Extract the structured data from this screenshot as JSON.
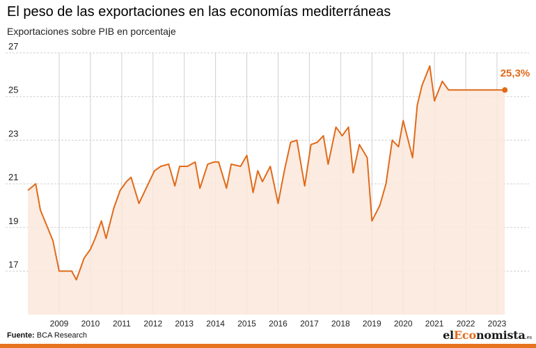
{
  "title": "El peso de las exportaciones en las economías mediterráneas",
  "subtitle": "Exportaciones sobre PIB en porcentaje",
  "source_label": "Fuente:",
  "source_value": "BCA Research",
  "brand": {
    "prefix": "el",
    "accent": "Eco",
    "suffix": "nomista",
    "tld": ".es"
  },
  "colors": {
    "line": "#e06a1a",
    "fill": "#fbe8da",
    "grid": "#d0d0d0",
    "bar": "#e8731f"
  },
  "chart_data": {
    "type": "area",
    "title": "El peso de las exportaciones en las economías mediterráneas",
    "subtitle": "Exportaciones sobre PIB en porcentaje",
    "xlabel": "",
    "ylabel": "",
    "ylim": [
      15,
      27
    ],
    "xlim": [
      2008,
      2023.75
    ],
    "yticks": [
      17,
      19,
      21,
      23,
      25,
      27
    ],
    "xticks": [
      2009,
      2010,
      2011,
      2012,
      2013,
      2014,
      2015,
      2016,
      2017,
      2018,
      2019,
      2020,
      2021,
      2022,
      2023
    ],
    "grid": true,
    "last_label": "25,3%",
    "series": [
      {
        "name": "Exportaciones sobre PIB",
        "x": [
          2008.0,
          2008.25,
          2008.4,
          2008.6,
          2008.8,
          2009.0,
          2009.2,
          2009.4,
          2009.55,
          2009.8,
          2010.0,
          2010.15,
          2010.35,
          2010.5,
          2010.75,
          2010.95,
          2011.15,
          2011.3,
          2011.55,
          2011.85,
          2012.05,
          2012.25,
          2012.5,
          2012.7,
          2012.85,
          2013.1,
          2013.35,
          2013.5,
          2013.75,
          2013.95,
          2014.1,
          2014.35,
          2014.5,
          2014.8,
          2015.0,
          2015.2,
          2015.35,
          2015.5,
          2015.75,
          2016.0,
          2016.2,
          2016.4,
          2016.6,
          2016.85,
          2017.05,
          2017.25,
          2017.45,
          2017.6,
          2017.85,
          2018.05,
          2018.25,
          2018.4,
          2018.6,
          2018.85,
          2019.0,
          2019.25,
          2019.45,
          2019.65,
          2019.85,
          2020.0,
          2020.3,
          2020.45,
          2020.6,
          2020.85,
          2021.0,
          2021.25,
          2021.45,
          2021.55,
          2021.75,
          2021.95,
          2022.05,
          2022.25,
          2022.45,
          2022.6,
          2022.75,
          2022.9,
          2023.05,
          2023.25
        ],
        "values": [
          20.7,
          21.0,
          19.8,
          19.1,
          18.4,
          17.0,
          17.0,
          17.0,
          16.6,
          17.6,
          18.0,
          18.5,
          19.3,
          18.5,
          19.9,
          20.7,
          21.1,
          21.3,
          20.1,
          21.0,
          21.6,
          21.8,
          21.9,
          20.9,
          21.8,
          21.8,
          22.0,
          20.8,
          21.9,
          22.0,
          22.0,
          20.8,
          21.9,
          21.8,
          22.3,
          20.6,
          21.6,
          21.1,
          21.8,
          20.1,
          21.6,
          22.9,
          23.0,
          20.9,
          22.8,
          22.9,
          23.2,
          21.9,
          23.6,
          23.2,
          23.6,
          21.5,
          22.8,
          22.2,
          19.3,
          20.0,
          21.0,
          23.0,
          22.7,
          23.9,
          22.2,
          24.6,
          25.5,
          26.4,
          24.8,
          25.7,
          25.3,
          25.3,
          25.3,
          25.3,
          25.3,
          25.3,
          25.3,
          25.3,
          25.3,
          25.3,
          25.3,
          25.3
        ]
      }
    ]
  }
}
